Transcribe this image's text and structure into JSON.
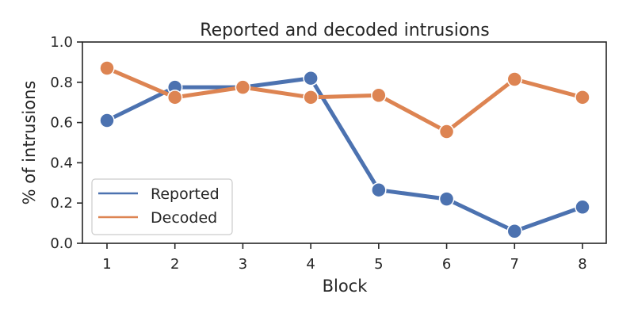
{
  "chart_data": {
    "type": "line",
    "title": "Reported and decoded intrusions",
    "xlabel": "Block",
    "ylabel": "% of intrusions",
    "x": [
      1,
      2,
      3,
      4,
      5,
      6,
      7,
      8
    ],
    "xticks": [
      "1",
      "2",
      "3",
      "4",
      "5",
      "6",
      "7",
      "8"
    ],
    "ylim": [
      0,
      1
    ],
    "yticks": [
      "0.0",
      "0.2",
      "0.4",
      "0.6",
      "0.8",
      "1.0"
    ],
    "grid": false,
    "legend_position": "lower-left",
    "series": [
      {
        "name": "Reported",
        "color": "#4c72b0",
        "values": [
          0.61,
          0.775,
          0.775,
          0.82,
          0.265,
          0.22,
          0.06,
          0.18
        ]
      },
      {
        "name": "Decoded",
        "color": "#dd8452",
        "values": [
          0.87,
          0.725,
          0.775,
          0.725,
          0.735,
          0.555,
          0.815,
          0.725
        ]
      }
    ]
  }
}
